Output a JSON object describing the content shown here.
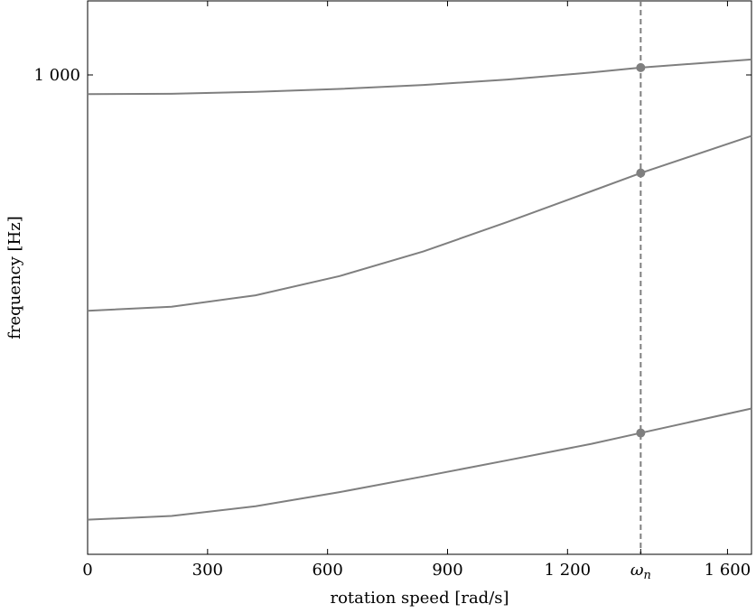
{
  "chart_data": {
    "type": "line",
    "title": "",
    "xlabel": "rotation speed [rad/s]",
    "ylabel": "frequency [Hz]",
    "xlim": [
      0,
      1660
    ],
    "ylog": true,
    "x_ticks": [
      {
        "value": 0,
        "label": "0"
      },
      {
        "value": 300,
        "label": "300"
      },
      {
        "value": 600,
        "label": "600"
      },
      {
        "value": 900,
        "label": "900"
      },
      {
        "value": 1200,
        "label": "1 200"
      },
      {
        "value": 1600,
        "label": "1 600"
      }
    ],
    "y_ticks": [
      {
        "value": 1000,
        "label": "1 000"
      }
    ],
    "marker": {
      "x": 1383,
      "label": "ω",
      "sub": "n"
    },
    "grid": false,
    "series": [
      {
        "x": [
          0,
          210,
          420,
          630,
          840,
          1050,
          1260,
          1383,
          1660
        ],
        "values": [
          947,
          948,
          953,
          961,
          972,
          987,
          1007,
          1021,
          1045
        ]
      },
      {
        "x": [
          0,
          210,
          420,
          630,
          840,
          1050,
          1260,
          1383,
          1660
        ],
        "values": [
          512,
          518,
          535,
          565,
          606,
          659,
          719,
          757,
          841
        ]
      },
      {
        "x": [
          0,
          210,
          420,
          630,
          840,
          1050,
          1260,
          1383,
          1660
        ],
        "values": [
          283,
          286,
          294,
          306,
          320,
          335,
          351,
          362,
          388
        ]
      }
    ],
    "colors": {
      "line": "#7f7f7f",
      "marker": "#7f7f7f"
    }
  }
}
